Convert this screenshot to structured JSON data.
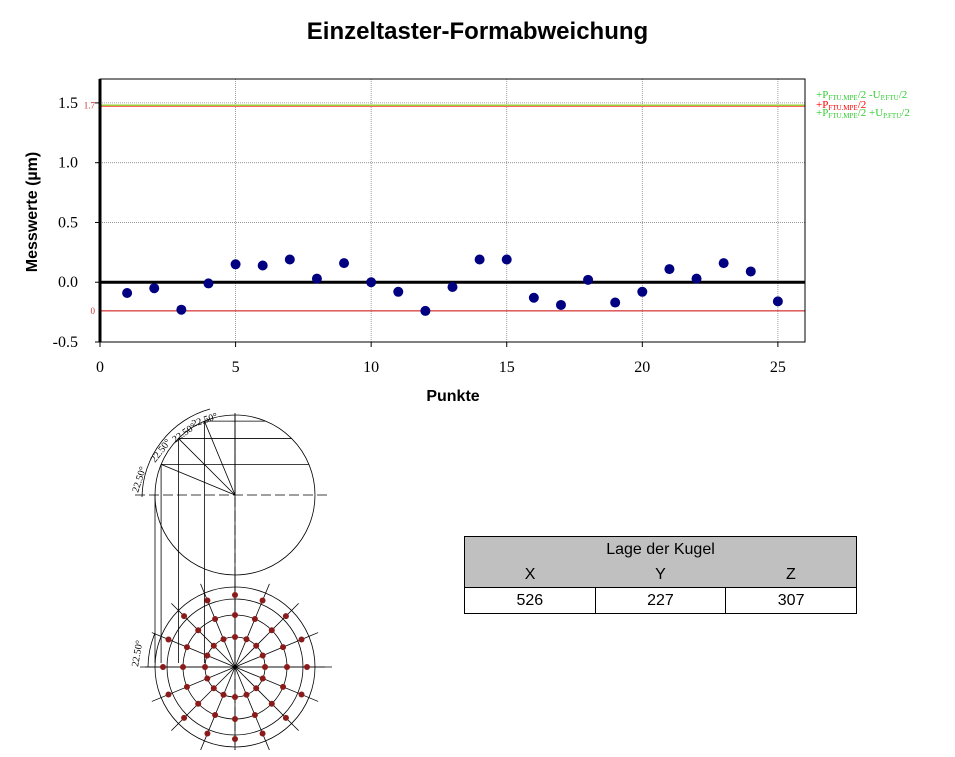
{
  "title": "Einzeltaster-Formabweichung",
  "chart_data": {
    "type": "scatter",
    "title": "Einzeltaster-Formabweichung",
    "xlabel": "Punkte",
    "ylabel": "Messwerte (µm)",
    "xlim": [
      0,
      26
    ],
    "ylim": [
      -0.5,
      1.7
    ],
    "xticks": [
      "0",
      "5",
      "10",
      "15",
      "20",
      "25"
    ],
    "yticks": [
      "-0.5",
      "0.0",
      "0.5",
      "1.0",
      "1.5"
    ],
    "grid": true,
    "point_color": "#000080",
    "x": [
      1,
      2,
      3,
      4,
      5,
      6,
      7,
      8,
      9,
      10,
      11,
      12,
      13,
      14,
      15,
      16,
      17,
      18,
      19,
      20,
      21,
      22,
      23,
      24,
      25
    ],
    "y": [
      -0.09,
      -0.05,
      -0.23,
      -0.01,
      0.15,
      0.14,
      0.19,
      0.03,
      0.16,
      0.0,
      -0.08,
      -0.24,
      -0.04,
      0.19,
      0.19,
      -0.13,
      -0.19,
      0.02,
      -0.17,
      -0.08,
      0.11,
      0.03,
      0.16,
      0.09,
      -0.16
    ],
    "reference_lines": [
      {
        "value": 1.48,
        "label_left": "1.7",
        "color": "#9acd32"
      },
      {
        "value": 1.47,
        "label_left": "",
        "color": "#ff6666"
      },
      {
        "value": -0.24,
        "label_left": "0",
        "color": "#cc0000"
      }
    ],
    "zero_line": {
      "value": 0,
      "color": "#000000"
    },
    "right_labels": [
      {
        "text": "+P",
        "sub": "FTU.MPE",
        "rest": "/2 -U",
        "sub2": "P.FTU",
        "tail": "/2",
        "color": "#33cc33"
      },
      {
        "text": "+P",
        "sub": "FTU.MPE",
        "rest": "/2",
        "sub2": "",
        "tail": "",
        "color": "#ff0000"
      },
      {
        "text": "+P",
        "sub": "FTU.MPE",
        "rest": "/2 +U",
        "sub2": "P.FTU",
        "tail": "/2",
        "color": "#33cc33"
      }
    ]
  },
  "diagram": {
    "angle_labels": [
      "22.50°",
      "22.50°",
      "22.50°",
      "22.50°"
    ],
    "bottom_angle_label": "22.50°",
    "point_color": "#8b1a1a"
  },
  "position_table": {
    "title": "Lage der Kugel",
    "headers": [
      "X",
      "Y",
      "Z"
    ],
    "values": [
      "526",
      "227",
      "307"
    ]
  }
}
